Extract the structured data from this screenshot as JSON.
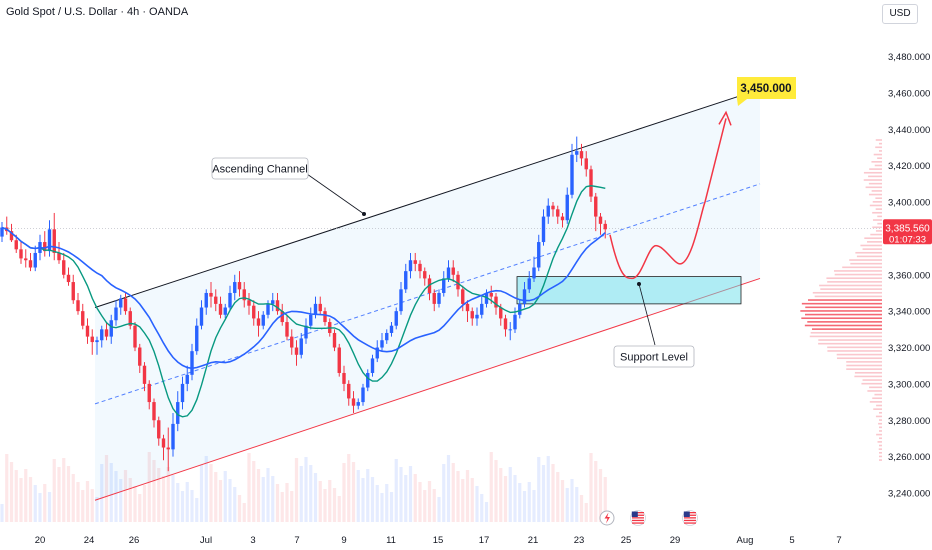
{
  "header": {
    "title": "Gold Spot / U.S. Dollar · 4h · OANDA",
    "currency": "USD"
  },
  "price_box": {
    "price": "3,385.560",
    "countdown": "01:07:33",
    "color": "#f23645"
  },
  "annotations": {
    "channel_label": "Ascending Channel",
    "support_label": "Support Level",
    "target_label": "3,450.000",
    "target_color": "#ffeb3b"
  },
  "colors": {
    "up": "#2962ff",
    "down": "#f23645",
    "ma_fast": "#089981",
    "ma_slow": "#2962ff",
    "channel_upper": "#131722",
    "channel_lower": "#f23645",
    "channel_fill": "#2196f3",
    "support_fill": "#6ce0ea",
    "projection": "#f23645"
  },
  "icons": [
    "lightning-icon",
    "us-flag-icon",
    "us-flag-icon"
  ],
  "chart_data": {
    "type": "candlestick",
    "title": "Gold Spot / U.S. Dollar · 4h · OANDA",
    "ylim": [
      3230,
      3510
    ],
    "y_ticks": [
      3240,
      3260,
      3280,
      3300,
      3320,
      3340,
      3360,
      3380,
      3400,
      3420,
      3440,
      3460,
      3480
    ],
    "x_tick_labels": [
      "20",
      "24",
      "26",
      "Jul",
      "3",
      "7",
      "9",
      "11",
      "15",
      "17",
      "21",
      "23",
      "25",
      "29",
      "Aug",
      "5",
      "7"
    ],
    "last_price": 3385.56,
    "target_price": 3450.0,
    "support_zone": [
      3344,
      3359
    ],
    "series_ohlc": {
      "name": "XAUUSD",
      "open": [
        3381,
        3386,
        3384,
        3379,
        3374,
        3369,
        3368,
        3364,
        3372,
        3378,
        3373,
        3385,
        3372,
        3368,
        3360,
        3356,
        3346,
        3340,
        3332,
        3326,
        3323,
        3324,
        3330,
        3326,
        3335,
        3342,
        3347,
        3340,
        3332,
        3320,
        3310,
        3300,
        3290,
        3280,
        3270,
        3265,
        3264,
        3278,
        3290,
        3300,
        3305,
        3318,
        3332,
        3342,
        3350,
        3348,
        3344,
        3338,
        3342,
        3350,
        3356,
        3352,
        3346,
        3343,
        3336,
        3332,
        3338,
        3344,
        3346,
        3340,
        3334,
        3326,
        3320,
        3316,
        3325,
        3332,
        3338,
        3344,
        3340,
        3334,
        3328,
        3320,
        3306,
        3300,
        3292,
        3288,
        3290,
        3298,
        3306,
        3314,
        3320,
        3324,
        3328,
        3332,
        3340,
        3352,
        3362,
        3368,
        3366,
        3362,
        3358,
        3350,
        3344,
        3350,
        3358,
        3364,
        3360,
        3352,
        3344,
        3340,
        3336,
        3338,
        3344,
        3350,
        3348,
        3342,
        3336,
        3330,
        3330,
        3338,
        3344,
        3352,
        3358,
        3364,
        3378,
        3392,
        3398,
        3396,
        3392,
        3390,
        3404,
        3426,
        3428,
        3424,
        3418,
        3403,
        3392,
        3388
      ],
      "high": [
        3389,
        3392,
        3388,
        3382,
        3378,
        3374,
        3372,
        3376,
        3382,
        3384,
        3390,
        3394,
        3378,
        3372,
        3364,
        3360,
        3350,
        3344,
        3336,
        3330,
        3326,
        3332,
        3334,
        3338,
        3346,
        3349,
        3350,
        3342,
        3334,
        3322,
        3312,
        3302,
        3292,
        3282,
        3272,
        3276,
        3284,
        3296,
        3304,
        3310,
        3322,
        3336,
        3346,
        3352,
        3356,
        3352,
        3348,
        3344,
        3354,
        3360,
        3362,
        3356,
        3350,
        3346,
        3340,
        3340,
        3346,
        3350,
        3350,
        3344,
        3338,
        3330,
        3324,
        3328,
        3336,
        3342,
        3348,
        3348,
        3342,
        3336,
        3330,
        3322,
        3310,
        3302,
        3296,
        3292,
        3300,
        3308,
        3316,
        3324,
        3328,
        3330,
        3334,
        3342,
        3356,
        3366,
        3372,
        3372,
        3368,
        3364,
        3360,
        3352,
        3352,
        3362,
        3368,
        3368,
        3362,
        3354,
        3346,
        3342,
        3342,
        3348,
        3352,
        3354,
        3350,
        3344,
        3338,
        3334,
        3342,
        3346,
        3356,
        3362,
        3370,
        3382,
        3396,
        3402,
        3400,
        3398,
        3394,
        3408,
        3432,
        3436,
        3432,
        3428,
        3420,
        3405,
        3394,
        3390
      ],
      "low": [
        3378,
        3382,
        3378,
        3372,
        3366,
        3364,
        3362,
        3362,
        3368,
        3370,
        3370,
        3368,
        3366,
        3358,
        3354,
        3344,
        3338,
        3330,
        3322,
        3316,
        3316,
        3320,
        3324,
        3322,
        3332,
        3338,
        3338,
        3330,
        3318,
        3306,
        3296,
        3286,
        3276,
        3266,
        3258,
        3252,
        3260,
        3274,
        3286,
        3296,
        3302,
        3316,
        3330,
        3338,
        3342,
        3340,
        3336,
        3336,
        3340,
        3346,
        3348,
        3342,
        3338,
        3332,
        3326,
        3330,
        3336,
        3340,
        3338,
        3332,
        3324,
        3316,
        3310,
        3314,
        3322,
        3330,
        3336,
        3338,
        3332,
        3326,
        3318,
        3304,
        3296,
        3288,
        3284,
        3286,
        3288,
        3296,
        3304,
        3312,
        3318,
        3322,
        3326,
        3330,
        3338,
        3350,
        3358,
        3362,
        3358,
        3354,
        3346,
        3340,
        3342,
        3348,
        3356,
        3356,
        3348,
        3340,
        3334,
        3332,
        3332,
        3336,
        3342,
        3344,
        3338,
        3332,
        3326,
        3324,
        3328,
        3336,
        3342,
        3350,
        3356,
        3362,
        3376,
        3388,
        3392,
        3388,
        3386,
        3388,
        3402,
        3422,
        3420,
        3414,
        3400,
        3384,
        3382,
        3380
      ],
      "close": [
        3386,
        3384,
        3379,
        3374,
        3369,
        3368,
        3364,
        3372,
        3378,
        3373,
        3385,
        3372,
        3368,
        3360,
        3356,
        3346,
        3340,
        3332,
        3326,
        3323,
        3324,
        3330,
        3326,
        3335,
        3342,
        3347,
        3340,
        3332,
        3320,
        3310,
        3300,
        3290,
        3280,
        3270,
        3265,
        3264,
        3278,
        3290,
        3300,
        3305,
        3318,
        3332,
        3342,
        3350,
        3348,
        3344,
        3338,
        3342,
        3350,
        3356,
        3352,
        3346,
        3343,
        3336,
        3332,
        3338,
        3344,
        3346,
        3340,
        3334,
        3326,
        3320,
        3316,
        3325,
        3332,
        3338,
        3344,
        3340,
        3334,
        3328,
        3320,
        3306,
        3300,
        3292,
        3288,
        3290,
        3298,
        3306,
        3314,
        3320,
        3324,
        3328,
        3332,
        3340,
        3352,
        3362,
        3368,
        3366,
        3362,
        3358,
        3350,
        3344,
        3350,
        3358,
        3364,
        3360,
        3352,
        3344,
        3340,
        3336,
        3338,
        3344,
        3350,
        3348,
        3342,
        3336,
        3330,
        3330,
        3338,
        3344,
        3352,
        3358,
        3364,
        3378,
        3392,
        3398,
        3396,
        3392,
        3390,
        3404,
        3426,
        3428,
        3424,
        3418,
        3403,
        3392,
        3388,
        3385
      ]
    }
  }
}
